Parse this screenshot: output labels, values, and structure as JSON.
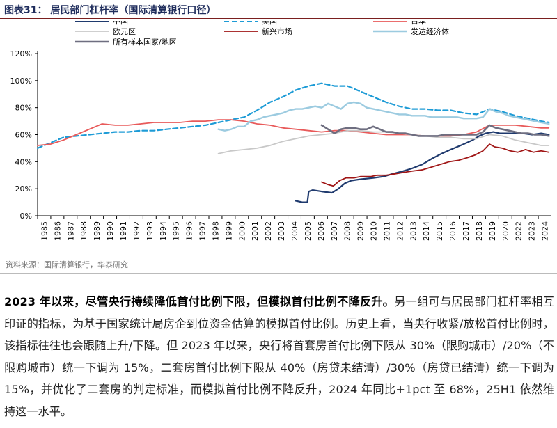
{
  "figure_title": "图表31：  居民部门杠杆率（国际清算银行口径）",
  "source": "资料来源：国际清算银行，华泰研究",
  "paragraph": {
    "lead": "2023 年以来，尽管央行持续降低首付比例下限，但模拟首付比例不降反升。",
    "body": "另一组可与居民部门杠杆率相互印证的指标，为基于国家统计局房企到位资金估算的模拟首付比例。历史上看，当央行收紧/放松首付比例时，该指标往往也会跟随上升/下降。但 2023 年以来，央行将首套房首付比例下限从 30%（限购城市）/20%（不限购城市）统一下调为 15%，二套房首付比例下限从 40%（房贷未结清）/30%（房贷已结清）统一下调为 15%，并优化了二套房的判定标准，而模拟首付比例不降反升，2024 年同比+1pct 至 68%，25H1 依然维持这一水平。"
  },
  "chart_data": {
    "type": "line",
    "xlabel": "",
    "ylabel": "",
    "x_ticks": [
      "1985",
      "1986",
      "1987",
      "1988",
      "1989",
      "1990",
      "1991",
      "1992",
      "1993",
      "1994",
      "1995",
      "1996",
      "1997",
      "1998",
      "1999",
      "2000",
      "2001",
      "2002",
      "2003",
      "2004",
      "2005",
      "2006",
      "2007",
      "2008",
      "2009",
      "2010",
      "2011",
      "2012",
      "2013",
      "2014",
      "2015",
      "2016",
      "2017",
      "2018",
      "2019",
      "2020",
      "2022",
      "2023",
      "2024"
    ],
    "y_ticks": [
      "0%",
      "20%",
      "40%",
      "60%",
      "80%",
      "100%",
      "120%"
    ],
    "ylim": [
      0,
      120
    ],
    "grid": false,
    "legend_position": "top",
    "series": [
      {
        "name": "中国",
        "color": "#1f3a6e",
        "style": "solid",
        "width": 2.2,
        "points": [
          [
            2005.0,
            11
          ],
          [
            2005.5,
            10
          ],
          [
            2005.9,
            10
          ],
          [
            2006.0,
            18
          ],
          [
            2006.3,
            19
          ],
          [
            2007.0,
            18
          ],
          [
            2007.8,
            17
          ],
          [
            2008.3,
            20
          ],
          [
            2008.8,
            24
          ],
          [
            2009.3,
            26
          ],
          [
            2010.0,
            27
          ],
          [
            2011.0,
            28
          ],
          [
            2011.8,
            29
          ],
          [
            2012.5,
            31
          ],
          [
            2013.3,
            33
          ],
          [
            2014.0,
            35
          ],
          [
            2014.8,
            38
          ],
          [
            2015.5,
            42
          ],
          [
            2016.3,
            46
          ],
          [
            2017.0,
            49
          ],
          [
            2018.0,
            53
          ],
          [
            2018.7,
            56
          ],
          [
            2019.2,
            59
          ],
          [
            2019.7,
            61
          ],
          [
            2020.3,
            62
          ],
          [
            2020.8,
            61
          ],
          [
            2021.4,
            61
          ],
          [
            2022.0,
            61
          ],
          [
            2022.6,
            61
          ],
          [
            2023.3,
            60
          ],
          [
            2024.0,
            61
          ],
          [
            2024.6,
            60
          ]
        ]
      },
      {
        "name": "美国",
        "color": "#1d9bd6",
        "style": "dashed",
        "width": 2.2,
        "points": [
          [
            1985,
            50
          ],
          [
            1986,
            54
          ],
          [
            1987,
            58
          ],
          [
            1988,
            59
          ],
          [
            1989,
            60
          ],
          [
            1990,
            61
          ],
          [
            1991,
            62
          ],
          [
            1992,
            62
          ],
          [
            1993,
            63
          ],
          [
            1994,
            63
          ],
          [
            1995,
            64
          ],
          [
            1996,
            65
          ],
          [
            1997,
            66
          ],
          [
            1998,
            67
          ],
          [
            1999,
            69
          ],
          [
            2000,
            71
          ],
          [
            2001,
            73
          ],
          [
            2002,
            78
          ],
          [
            2003,
            84
          ],
          [
            2004,
            88
          ],
          [
            2005,
            93
          ],
          [
            2006,
            96
          ],
          [
            2007,
            98
          ],
          [
            2008,
            96
          ],
          [
            2009,
            96
          ],
          [
            2010,
            92
          ],
          [
            2011,
            88
          ],
          [
            2012,
            84
          ],
          [
            2013,
            81
          ],
          [
            2014,
            79
          ],
          [
            2015,
            79
          ],
          [
            2016,
            78
          ],
          [
            2017,
            78
          ],
          [
            2018,
            76
          ],
          [
            2019,
            75
          ],
          [
            2020,
            79
          ],
          [
            2021,
            77
          ],
          [
            2022,
            74
          ],
          [
            2023,
            72
          ],
          [
            2024,
            70
          ],
          [
            2024.6,
            69
          ]
        ]
      },
      {
        "name": "日本",
        "color": "#e85a5a",
        "style": "solid",
        "width": 1.8,
        "points": [
          [
            1985,
            52
          ],
          [
            1986,
            53
          ],
          [
            1987,
            56
          ],
          [
            1988,
            60
          ],
          [
            1989,
            64
          ],
          [
            1990,
            68
          ],
          [
            1991,
            67
          ],
          [
            1992,
            67
          ],
          [
            1993,
            68
          ],
          [
            1994,
            69
          ],
          [
            1995,
            69
          ],
          [
            1996,
            69
          ],
          [
            1997,
            70
          ],
          [
            1998,
            70
          ],
          [
            1999,
            71
          ],
          [
            2000,
            71
          ],
          [
            2001,
            70
          ],
          [
            2002,
            68
          ],
          [
            2003,
            67
          ],
          [
            2004,
            65
          ],
          [
            2005,
            64
          ],
          [
            2006,
            63
          ],
          [
            2007,
            62
          ],
          [
            2008,
            63
          ],
          [
            2009,
            63
          ],
          [
            2010,
            62
          ],
          [
            2011,
            61
          ],
          [
            2012,
            60
          ],
          [
            2013,
            60
          ],
          [
            2014,
            60
          ],
          [
            2015,
            59
          ],
          [
            2016,
            59
          ],
          [
            2017,
            59
          ],
          [
            2018,
            60
          ],
          [
            2019,
            62
          ],
          [
            2020,
            67
          ],
          [
            2021,
            67
          ],
          [
            2022,
            67
          ],
          [
            2023,
            66
          ],
          [
            2024,
            65
          ],
          [
            2024.6,
            65
          ]
        ]
      },
      {
        "name": "欧元区",
        "color": "#c8c8c8",
        "style": "solid",
        "width": 1.8,
        "points": [
          [
            1999,
            46
          ],
          [
            2000,
            48
          ],
          [
            2001,
            49
          ],
          [
            2002,
            50
          ],
          [
            2003,
            52
          ],
          [
            2004,
            55
          ],
          [
            2005,
            57
          ],
          [
            2006,
            59
          ],
          [
            2007,
            60
          ],
          [
            2008,
            61
          ],
          [
            2009,
            63
          ],
          [
            2010,
            63
          ],
          [
            2011,
            62
          ],
          [
            2012,
            62
          ],
          [
            2013,
            61
          ],
          [
            2014,
            60
          ],
          [
            2015,
            59
          ],
          [
            2016,
            58
          ],
          [
            2017,
            58
          ],
          [
            2018,
            57
          ],
          [
            2019,
            57
          ],
          [
            2020,
            60
          ],
          [
            2021,
            59
          ],
          [
            2022,
            56
          ],
          [
            2023,
            54
          ],
          [
            2024,
            52
          ],
          [
            2024.6,
            52
          ]
        ]
      },
      {
        "name": "新兴市场",
        "color": "#a01616",
        "style": "solid",
        "width": 1.8,
        "points": [
          [
            2007.0,
            25
          ],
          [
            2007.5,
            23
          ],
          [
            2007.9,
            22
          ],
          [
            2008.4,
            26
          ],
          [
            2008.9,
            28
          ],
          [
            2009.5,
            28
          ],
          [
            2010.0,
            29
          ],
          [
            2010.8,
            29
          ],
          [
            2011.3,
            30
          ],
          [
            2012.0,
            30
          ],
          [
            2012.7,
            31
          ],
          [
            2013.3,
            32
          ],
          [
            2014.0,
            33
          ],
          [
            2014.8,
            34
          ],
          [
            2015.5,
            36
          ],
          [
            2016.2,
            38
          ],
          [
            2016.9,
            40
          ],
          [
            2017.6,
            41
          ],
          [
            2018.3,
            43
          ],
          [
            2018.9,
            45
          ],
          [
            2019.5,
            48
          ],
          [
            2020.0,
            53
          ],
          [
            2020.4,
            51
          ],
          [
            2021.0,
            50
          ],
          [
            2021.6,
            48
          ],
          [
            2022.2,
            47
          ],
          [
            2022.8,
            49
          ],
          [
            2023.4,
            47
          ],
          [
            2024.0,
            48
          ],
          [
            2024.6,
            47
          ]
        ]
      },
      {
        "name": "发达经济体",
        "color": "#9ccbe0",
        "style": "solid",
        "width": 2.4,
        "points": [
          [
            1999.0,
            64
          ],
          [
            1999.5,
            63
          ],
          [
            2000.0,
            64
          ],
          [
            2000.5,
            66
          ],
          [
            2001.0,
            66
          ],
          [
            2001.5,
            70
          ],
          [
            2002.0,
            71
          ],
          [
            2002.5,
            73
          ],
          [
            2003.0,
            74
          ],
          [
            2003.5,
            75
          ],
          [
            2004.0,
            76
          ],
          [
            2004.5,
            78
          ],
          [
            2005.0,
            79
          ],
          [
            2005.5,
            79
          ],
          [
            2006.0,
            80
          ],
          [
            2006.5,
            81
          ],
          [
            2007.0,
            80
          ],
          [
            2007.5,
            83
          ],
          [
            2008.0,
            81
          ],
          [
            2008.5,
            79
          ],
          [
            2009.0,
            83
          ],
          [
            2009.5,
            84
          ],
          [
            2010.0,
            83
          ],
          [
            2010.5,
            80
          ],
          [
            2011.0,
            79
          ],
          [
            2011.5,
            78
          ],
          [
            2012.0,
            77
          ],
          [
            2012.5,
            76
          ],
          [
            2013.0,
            75
          ],
          [
            2013.5,
            75
          ],
          [
            2014.0,
            74
          ],
          [
            2014.5,
            74
          ],
          [
            2015.0,
            74
          ],
          [
            2015.5,
            73
          ],
          [
            2016.0,
            73
          ],
          [
            2016.5,
            73
          ],
          [
            2017.0,
            73
          ],
          [
            2017.5,
            73
          ],
          [
            2018.0,
            72
          ],
          [
            2018.5,
            72
          ],
          [
            2019.0,
            72
          ],
          [
            2019.5,
            73
          ],
          [
            2020.0,
            79
          ],
          [
            2020.5,
            77
          ],
          [
            2021.0,
            76
          ],
          [
            2021.5,
            74
          ],
          [
            2022.0,
            73
          ],
          [
            2022.5,
            72
          ],
          [
            2023.0,
            71
          ],
          [
            2023.5,
            70
          ],
          [
            2024.0,
            69
          ],
          [
            2024.6,
            68
          ]
        ]
      },
      {
        "name": "所有样本国家/地区",
        "color": "#6e6e80",
        "style": "solid",
        "width": 2.6,
        "points": [
          [
            2007.0,
            67
          ],
          [
            2007.5,
            64
          ],
          [
            2008.0,
            61
          ],
          [
            2008.5,
            64
          ],
          [
            2009.0,
            65
          ],
          [
            2009.5,
            65
          ],
          [
            2010.0,
            64
          ],
          [
            2010.5,
            64
          ],
          [
            2011.0,
            66
          ],
          [
            2011.5,
            64
          ],
          [
            2012.0,
            62
          ],
          [
            2012.5,
            62
          ],
          [
            2013.0,
            61
          ],
          [
            2013.5,
            61
          ],
          [
            2014.0,
            60
          ],
          [
            2014.5,
            59
          ],
          [
            2015.0,
            59
          ],
          [
            2015.5,
            59
          ],
          [
            2016.0,
            59
          ],
          [
            2016.5,
            60
          ],
          [
            2017.0,
            60
          ],
          [
            2017.5,
            60
          ],
          [
            2018.0,
            60
          ],
          [
            2018.5,
            60
          ],
          [
            2019.0,
            60
          ],
          [
            2019.5,
            62
          ],
          [
            2020.0,
            67
          ],
          [
            2020.5,
            65
          ],
          [
            2021.0,
            64
          ],
          [
            2021.5,
            63
          ],
          [
            2022.0,
            62
          ],
          [
            2022.5,
            61
          ],
          [
            2023.0,
            61
          ],
          [
            2023.5,
            60
          ],
          [
            2024.0,
            60
          ],
          [
            2024.6,
            59
          ]
        ]
      }
    ]
  }
}
